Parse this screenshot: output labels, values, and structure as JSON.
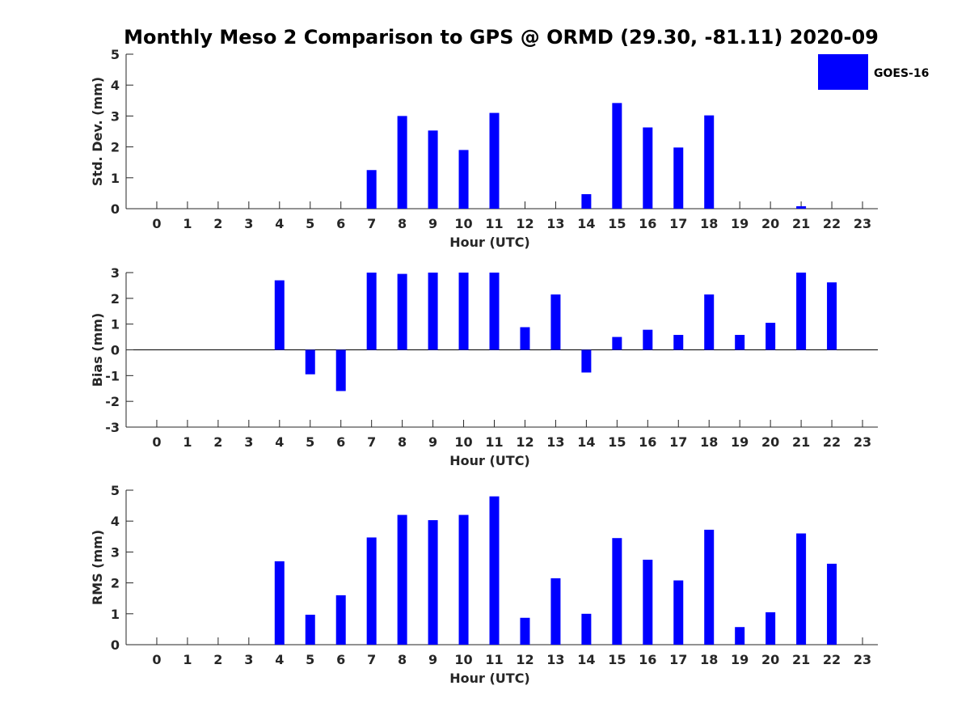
{
  "title": "Monthly Meso 2 Comparison to GPS @ ORMD (29.30, -81.11) 2020-09",
  "legend": {
    "label": "GOES-16",
    "color": "#0000ff",
    "placement": "top-right"
  },
  "colors": {
    "bar": "#0000ff",
    "axis": "#262626"
  },
  "chart_data": [
    {
      "type": "bar",
      "name": "std-dev",
      "categories": [
        "0",
        "1",
        "2",
        "3",
        "4",
        "5",
        "6",
        "7",
        "8",
        "9",
        "10",
        "11",
        "12",
        "13",
        "14",
        "15",
        "16",
        "17",
        "18",
        "19",
        "20",
        "21",
        "22",
        "23"
      ],
      "values": [
        0,
        0,
        0,
        0,
        0,
        0,
        0,
        1.25,
        3.0,
        2.53,
        1.9,
        3.1,
        0,
        0,
        0.47,
        3.42,
        2.63,
        1.98,
        3.02,
        0,
        0,
        0.08,
        0,
        0
      ],
      "xlabel": "Hour (UTC)",
      "ylabel": "Std. Dev. (mm)",
      "ylim": [
        0,
        5
      ],
      "yticks": [
        "0",
        "1",
        "2",
        "3",
        "4",
        "5"
      ],
      "zero_line": false
    },
    {
      "type": "bar",
      "name": "bias",
      "categories": [
        "0",
        "1",
        "2",
        "3",
        "4",
        "5",
        "6",
        "7",
        "8",
        "9",
        "10",
        "11",
        "12",
        "13",
        "14",
        "15",
        "16",
        "17",
        "18",
        "19",
        "20",
        "21",
        "22",
        "23"
      ],
      "values": [
        0,
        0,
        0,
        0,
        2.7,
        -0.95,
        -1.6,
        3.0,
        2.95,
        3.0,
        3.0,
        3.0,
        0.88,
        2.15,
        -0.88,
        0.5,
        0.78,
        0.58,
        2.15,
        0.58,
        1.05,
        3.0,
        2.62,
        0
      ],
      "xlabel": "Hour (UTC)",
      "ylabel": "Bias (mm)",
      "ylim": [
        -3,
        3
      ],
      "yticks": [
        "-3",
        "-2",
        "-1",
        "0",
        "1",
        "2",
        "3"
      ],
      "zero_line": true
    },
    {
      "type": "bar",
      "name": "rms",
      "categories": [
        "0",
        "1",
        "2",
        "3",
        "4",
        "5",
        "6",
        "7",
        "8",
        "9",
        "10",
        "11",
        "12",
        "13",
        "14",
        "15",
        "16",
        "17",
        "18",
        "19",
        "20",
        "21",
        "22",
        "23"
      ],
      "values": [
        0,
        0,
        0,
        0,
        2.7,
        0.97,
        1.6,
        3.47,
        4.2,
        4.03,
        4.2,
        4.8,
        0.87,
        2.15,
        1.0,
        3.45,
        2.75,
        2.08,
        3.72,
        0.57,
        1.05,
        3.6,
        2.62,
        0
      ],
      "xlabel": "Hour (UTC)",
      "ylabel": "RMS (mm)",
      "ylim": [
        0,
        5
      ],
      "yticks": [
        "0",
        "1",
        "2",
        "3",
        "4",
        "5"
      ],
      "zero_line": false
    }
  ]
}
